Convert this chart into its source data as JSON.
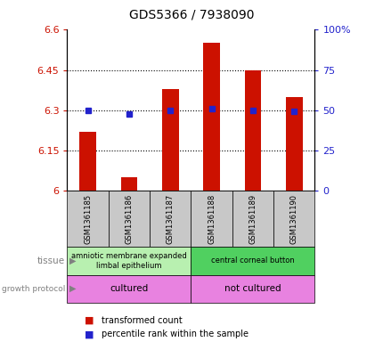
{
  "title": "GDS5366 / 7938090",
  "samples": [
    "GSM1361185",
    "GSM1361186",
    "GSM1361187",
    "GSM1361188",
    "GSM1361189",
    "GSM1361190"
  ],
  "red_values": [
    6.22,
    6.05,
    6.38,
    6.55,
    6.45,
    6.35
  ],
  "blue_values": [
    6.3,
    6.285,
    6.3,
    6.305,
    6.3,
    6.295
  ],
  "ylim_left": [
    6.0,
    6.6
  ],
  "ylim_right": [
    0,
    100
  ],
  "yticks_left": [
    6.0,
    6.15,
    6.3,
    6.45,
    6.6
  ],
  "yticks_right": [
    0,
    25,
    50,
    75,
    100
  ],
  "ytick_labels_left": [
    "6",
    "6.15",
    "6.3",
    "6.45",
    "6.6"
  ],
  "ytick_labels_right": [
    "0",
    "25",
    "50",
    "75",
    "100%"
  ],
  "tissue_label_left": "amniotic membrane expanded\nlimbal epithelium",
  "tissue_label_right": "central corneal button",
  "tissue_color_left": "#b8f0b0",
  "tissue_color_right": "#50d060",
  "growth_label_left": "cultured",
  "growth_label_right": "not cultured",
  "growth_color": "#e882e0",
  "bar_color": "#cc1100",
  "dot_color": "#2222cc",
  "sample_bg": "#c8c8c8",
  "bar_width": 0.4,
  "legend_red": "transformed count",
  "legend_blue": "percentile rank within the sample",
  "title_fontsize": 10,
  "tick_fontsize": 8,
  "sample_fontsize": 6,
  "annot_fontsize": 7.5,
  "grid_yticks": [
    6.15,
    6.3,
    6.45
  ]
}
